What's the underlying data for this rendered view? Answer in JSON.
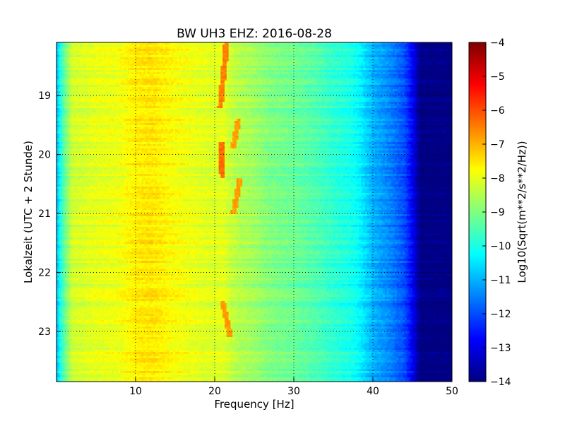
{
  "chart_data": {
    "type": "heatmap",
    "title": "BW UH3 EHZ: 2016-08-28",
    "xlabel": "Frequency [Hz]",
    "ylabel": "Lokalzeit (UTC + 2 Stunde)",
    "xlim": [
      0,
      50
    ],
    "ylim": [
      18.1,
      23.85
    ],
    "y_inverted": true,
    "x_ticks": [
      10,
      20,
      30,
      40,
      50
    ],
    "y_ticks": [
      19,
      20,
      21,
      22,
      23
    ],
    "grid": true,
    "grid_style": "dotted",
    "colormap": "jet",
    "colorbar": {
      "label": "Log10(Sqrt(m**2/s**2/Hz))",
      "range": [
        -14,
        -4
      ],
      "ticks": [
        -4,
        -5,
        -6,
        -7,
        -8,
        -9,
        -10,
        -11,
        -12,
        -13,
        -14
      ]
    },
    "spectrum_profile": {
      "frequency_hz": [
        0,
        0.5,
        1,
        2,
        5,
        8,
        10,
        12,
        15,
        18,
        20,
        21,
        22,
        23,
        25,
        27,
        30,
        33,
        35,
        37,
        38,
        39,
        40,
        42,
        44,
        45,
        46,
        50
      ],
      "log_amplitude": [
        -11,
        -10,
        -9.3,
        -8.2,
        -8.0,
        -7.9,
        -7.6,
        -7.5,
        -7.8,
        -8.0,
        -8.1,
        -8.0,
        -8.3,
        -8.5,
        -8.7,
        -9.0,
        -9.2,
        -9.5,
        -9.8,
        -10.0,
        -10.2,
        -10.6,
        -11.0,
        -11.4,
        -12.0,
        -12.8,
        -14,
        -14
      ]
    },
    "features": [
      {
        "name": "spectral line ~21 Hz",
        "freq_start": 21.5,
        "freq_end": 20.7,
        "time_start": 18.1,
        "time_end": 19.2,
        "log_amplitude": -6.5
      },
      {
        "name": "spectral line ~21 Hz",
        "freq_start": 20.8,
        "freq_end": 21.0,
        "time_start": 19.8,
        "time_end": 20.4,
        "log_amplitude": -6.3
      },
      {
        "name": "spectral line ~23 Hz",
        "freq_start": 23.0,
        "freq_end": 22.3,
        "time_start": 19.4,
        "time_end": 19.9,
        "log_amplitude": -6.8
      },
      {
        "name": "spectral line ~23 Hz",
        "freq_start": 23.2,
        "freq_end": 22.4,
        "time_start": 20.4,
        "time_end": 21.0,
        "log_amplitude": -6.8
      },
      {
        "name": "spectral line ~21.5 Hz",
        "freq_start": 21.0,
        "freq_end": 22.0,
        "time_start": 22.5,
        "time_end": 23.1,
        "log_amplitude": -6.8
      }
    ]
  }
}
